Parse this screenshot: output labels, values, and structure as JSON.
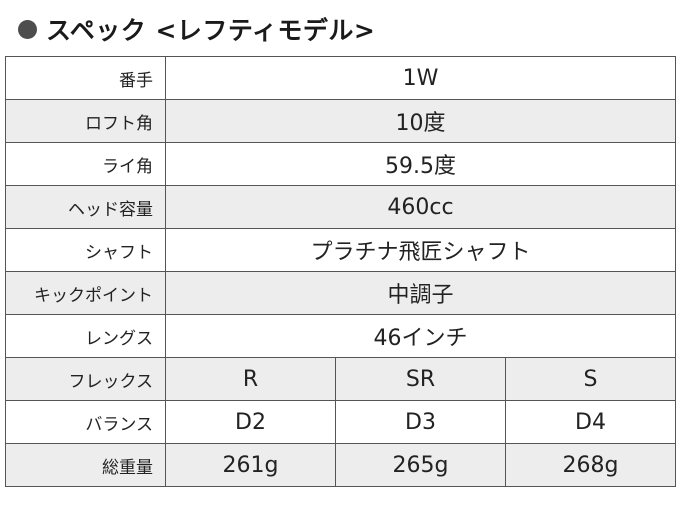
{
  "heading": {
    "title": "スペック <レフティモデル>"
  },
  "spec": {
    "rows_single": [
      {
        "label": "番手",
        "value": "1W"
      },
      {
        "label": "ロフト角",
        "value": "10度"
      },
      {
        "label": "ライ角",
        "value": "59.5度"
      },
      {
        "label": "ヘッド容量",
        "value": "460cc"
      },
      {
        "label": "シャフト",
        "value": "プラチナ飛匠シャフト"
      },
      {
        "label": "キックポイント",
        "value": "中調子"
      },
      {
        "label": "レングス",
        "value": "46インチ"
      }
    ],
    "rows_multi": [
      {
        "label": "フレックス",
        "values": [
          "R",
          "SR",
          "S"
        ]
      },
      {
        "label": "バランス",
        "values": [
          "D2",
          "D3",
          "D4"
        ]
      },
      {
        "label": "総重量",
        "values": [
          "261g",
          "265g",
          "268g"
        ]
      }
    ]
  },
  "colors": {
    "shade_row": "#ededed",
    "border": "#555555",
    "bullet": "#4d4d4d"
  }
}
